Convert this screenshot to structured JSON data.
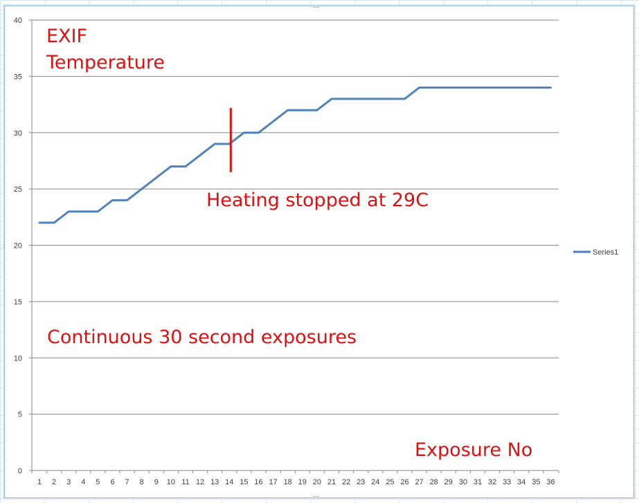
{
  "chart_data": {
    "type": "line",
    "x": [
      1,
      2,
      3,
      4,
      5,
      6,
      7,
      8,
      9,
      10,
      11,
      12,
      13,
      14,
      15,
      16,
      17,
      18,
      19,
      20,
      21,
      22,
      23,
      24,
      25,
      26,
      27,
      28,
      29,
      30,
      31,
      32,
      33,
      34,
      35,
      36
    ],
    "series": [
      {
        "name": "Series1",
        "values": [
          22,
          22,
          23,
          23,
          23,
          24,
          24,
          25,
          26,
          27,
          27,
          28,
          29,
          29,
          30,
          30,
          31,
          32,
          32,
          32,
          33,
          33,
          33,
          33,
          33,
          33,
          34,
          34,
          34,
          34,
          34,
          34,
          34,
          34,
          34,
          34
        ],
        "color": "#4f81bd"
      }
    ],
    "ylim": [
      0,
      40
    ],
    "yticks": [
      0,
      5,
      10,
      15,
      20,
      25,
      30,
      35,
      40
    ],
    "grid": true,
    "legend": "right",
    "annotations": {
      "title_line1": "EXIF",
      "title_line2": "Temperature",
      "heating_note": "Heating stopped at 29C",
      "exposure_note": "Continuous 30 second exposures",
      "x_note": "Exposure No"
    },
    "marker": {
      "x": 14,
      "y_from": 26.5,
      "y_to": 32.2,
      "color": "#e01010"
    }
  }
}
